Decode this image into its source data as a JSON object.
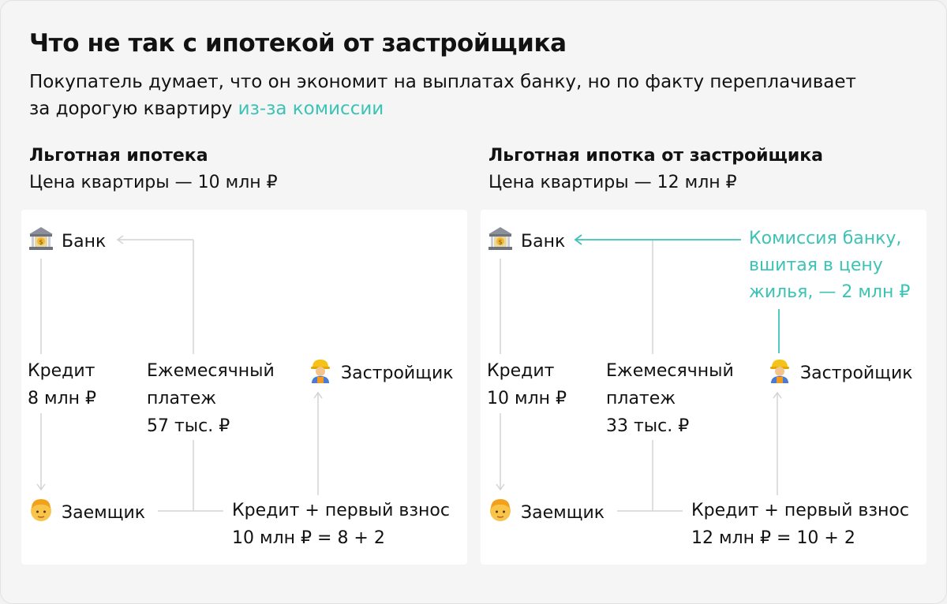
{
  "header": {
    "title": "Что не так с ипотекой от застройщика",
    "subtitle_line1": "Покупатель думает, что он экономит на выплатах банку, но по факту переплачивает",
    "subtitle_line2_prefix": "за дорогую квартиру ",
    "subtitle_line2_accent": "из-за комиссии"
  },
  "colors": {
    "accent": "#3cc3b6",
    "line": "#d3d3d3",
    "text": "#121212",
    "background": "#f5f5f5"
  },
  "left": {
    "heading": "Льготная ипотека",
    "price": "Цена квартиры — 10 млн ₽",
    "bank": {
      "icon": "bank-icon",
      "label": "Банк"
    },
    "credit": {
      "line1": "Кредит",
      "line2": "8 млн ₽"
    },
    "payment": {
      "line1": "Ежемесячный",
      "line2": "платеж",
      "line3": "57 тыс. ₽"
    },
    "developer": {
      "icon": "construction-worker-icon",
      "label": "Застройщик"
    },
    "borrower": {
      "icon": "person-icon",
      "label": "Заемщик"
    },
    "down": {
      "line1": "Кредит + первый взнос",
      "line2": "10 млн ₽ = 8 + 2"
    }
  },
  "right": {
    "heading": "Льготная ипотка от застройщика",
    "price": "Цена квартиры — 12 млн ₽",
    "bank": {
      "icon": "bank-icon",
      "label": "Банк"
    },
    "commission": {
      "line1": "Комиссия банку,",
      "line2": "вшитая в цену",
      "line3": "жилья, — 2 млн ₽"
    },
    "credit": {
      "line1": "Кредит",
      "line2": "10 млн ₽"
    },
    "payment": {
      "line1": "Ежемесячный",
      "line2": "платеж",
      "line3": "33 тыс. ₽"
    },
    "developer": {
      "icon": "construction-worker-icon",
      "label": "Застройщик"
    },
    "borrower": {
      "icon": "person-icon",
      "label": "Заемщик"
    },
    "down": {
      "line1": "Кредит + первый взнос",
      "line2": "12 млн ₽ = 10 + 2"
    }
  }
}
